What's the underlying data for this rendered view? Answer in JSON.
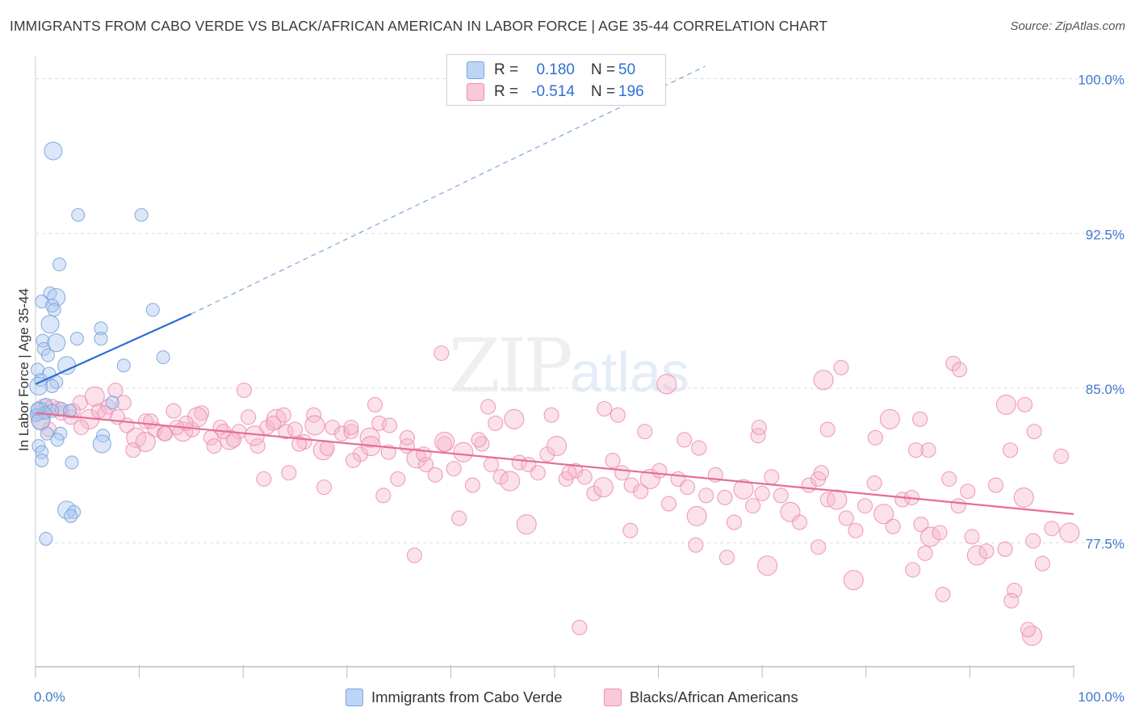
{
  "header": {
    "title": "IMMIGRANTS FROM CABO VERDE VS BLACK/AFRICAN AMERICAN IN LABOR FORCE | AGE 35-44 CORRELATION CHART",
    "source": "Source: ZipAtlas.com"
  },
  "watermark": {
    "zip": "ZIP",
    "atlas": "atlas"
  },
  "legend_top": {
    "rows": [
      {
        "r_label": "R =",
        "r_value": "0.180",
        "n_label": "N =",
        "n_value": "50"
      },
      {
        "r_label": "R =",
        "r_value": "-0.514",
        "n_label": "N =",
        "n_value": "196"
      }
    ]
  },
  "legend_bottom": {
    "items": [
      {
        "label": "Immigrants from Cabo Verde"
      },
      {
        "label": "Blacks/African Americans"
      }
    ]
  },
  "colors": {
    "blue_fill": "#a9c6ef",
    "blue_stroke": "#7aa3dc",
    "blue_line": "#2f6fd6",
    "pink_fill": "#f6b8cc",
    "pink_stroke": "#ec8fae",
    "pink_line": "#e56d97",
    "tick_text": "#3f78d0",
    "grid": "#dddddd"
  },
  "chart_data": {
    "type": "scatter",
    "title": "IMMIGRANTS FROM CABO VERDE VS BLACK/AFRICAN AMERICAN IN LABOR FORCE | AGE 35-44 CORRELATION CHART",
    "xlabel": "",
    "ylabel": "In Labor Force | Age 35-44",
    "xlim": [
      0,
      100
    ],
    "ylim": [
      70.0,
      101.0
    ],
    "x_tick_labels": [
      "0.0%",
      "100.0%"
    ],
    "y_ticks": [
      77.5,
      85.0,
      92.5,
      100.0
    ],
    "y_tick_labels": [
      "77.5%",
      "85.0%",
      "92.5%",
      "100.0%"
    ],
    "grid": true,
    "legend_position": "top-center",
    "series": [
      {
        "name": "Immigrants from Cabo Verde",
        "color": "#a9c6ef",
        "r": 0.18,
        "n": 50,
        "trend": {
          "x": [
            0.0,
            15.0
          ],
          "y": [
            85.2,
            88.6
          ],
          "extended_to": [
            64.5,
            100.6
          ]
        },
        "points": [
          [
            1.7,
            96.5
          ],
          [
            4.1,
            93.4
          ],
          [
            10.2,
            93.4
          ],
          [
            2.3,
            91.0
          ],
          [
            1.4,
            89.6
          ],
          [
            2.0,
            89.4
          ],
          [
            0.6,
            89.2
          ],
          [
            1.6,
            89.0
          ],
          [
            1.8,
            88.8
          ],
          [
            11.3,
            88.8
          ],
          [
            1.4,
            88.1
          ],
          [
            6.3,
            87.9
          ],
          [
            0.7,
            87.3
          ],
          [
            4.0,
            87.4
          ],
          [
            6.3,
            87.4
          ],
          [
            2.0,
            87.2
          ],
          [
            0.8,
            86.9
          ],
          [
            1.2,
            86.6
          ],
          [
            12.3,
            86.5
          ],
          [
            8.5,
            86.1
          ],
          [
            3.0,
            86.1
          ],
          [
            0.2,
            85.9
          ],
          [
            1.3,
            85.7
          ],
          [
            0.5,
            85.4
          ],
          [
            2.0,
            85.3
          ],
          [
            0.3,
            85.1
          ],
          [
            1.6,
            85.1
          ],
          [
            7.4,
            84.3
          ],
          [
            1.0,
            84.2
          ],
          [
            2.5,
            84.0
          ],
          [
            0.4,
            83.9
          ],
          [
            1.6,
            83.9
          ],
          [
            3.3,
            83.9
          ],
          [
            0.9,
            83.8
          ],
          [
            0.1,
            83.7
          ],
          [
            0.5,
            83.4
          ],
          [
            6.5,
            82.7
          ],
          [
            2.4,
            82.8
          ],
          [
            1.1,
            82.8
          ],
          [
            2.1,
            82.5
          ],
          [
            6.4,
            82.3
          ],
          [
            0.3,
            82.2
          ],
          [
            0.6,
            81.9
          ],
          [
            3.5,
            81.4
          ],
          [
            0.6,
            81.5
          ],
          [
            3.0,
            79.1
          ],
          [
            3.7,
            79.0
          ],
          [
            3.4,
            78.8
          ],
          [
            1.0,
            77.7
          ],
          [
            0.2,
            84.0
          ]
        ]
      },
      {
        "name": "Blacks/African Americans",
        "color": "#f6b8cc",
        "r": -0.514,
        "n": 196,
        "trend": {
          "x": [
            0.0,
            100.0
          ],
          "y": [
            83.8,
            78.9
          ]
        },
        "points": [
          [
            0.8,
            84.0
          ],
          [
            1.6,
            84.1
          ],
          [
            2.5,
            83.8
          ],
          [
            3.4,
            83.6
          ],
          [
            4.3,
            84.3
          ],
          [
            5.2,
            83.5
          ],
          [
            6.1,
            83.9
          ],
          [
            7.0,
            84.1
          ],
          [
            7.9,
            83.6
          ],
          [
            8.8,
            83.2
          ],
          [
            9.7,
            82.6
          ],
          [
            10.6,
            83.4
          ],
          [
            11.5,
            83.0
          ],
          [
            12.4,
            82.8
          ],
          [
            13.3,
            83.9
          ],
          [
            14.2,
            82.9
          ],
          [
            15.1,
            83.0
          ],
          [
            16.0,
            83.8
          ],
          [
            16.9,
            82.6
          ],
          [
            17.8,
            83.1
          ],
          [
            18.7,
            82.5
          ],
          [
            19.6,
            82.9
          ],
          [
            20.5,
            83.6
          ],
          [
            21.4,
            82.2
          ],
          [
            22.3,
            83.1
          ],
          [
            23.2,
            83.5
          ],
          [
            24.1,
            82.9
          ],
          [
            25.0,
            83.0
          ],
          [
            25.9,
            82.4
          ],
          [
            26.8,
            83.7
          ],
          [
            27.7,
            82.0
          ],
          [
            28.6,
            83.1
          ],
          [
            29.5,
            82.8
          ],
          [
            30.4,
            82.9
          ],
          [
            31.3,
            81.8
          ],
          [
            32.2,
            82.6
          ],
          [
            33.1,
            83.3
          ],
          [
            34.0,
            81.9
          ],
          [
            34.9,
            80.6
          ],
          [
            35.8,
            82.2
          ],
          [
            36.7,
            81.6
          ],
          [
            37.6,
            81.3
          ],
          [
            38.5,
            80.8
          ],
          [
            39.4,
            82.3
          ],
          [
            40.3,
            81.1
          ],
          [
            41.2,
            81.9
          ],
          [
            42.1,
            80.3
          ],
          [
            43.0,
            82.3
          ],
          [
            43.9,
            81.3
          ],
          [
            44.8,
            80.7
          ],
          [
            45.7,
            80.5
          ],
          [
            46.6,
            81.4
          ],
          [
            47.5,
            81.3
          ],
          [
            48.4,
            80.9
          ],
          [
            49.3,
            81.8
          ],
          [
            50.2,
            82.2
          ],
          [
            51.1,
            80.6
          ],
          [
            52.0,
            81.0
          ],
          [
            52.9,
            80.7
          ],
          [
            53.8,
            79.9
          ],
          [
            54.7,
            80.2
          ],
          [
            55.6,
            81.5
          ],
          [
            56.5,
            80.9
          ],
          [
            57.4,
            80.3
          ],
          [
            58.3,
            80.0
          ],
          [
            59.2,
            80.6
          ],
          [
            60.1,
            81.0
          ],
          [
            61.0,
            79.4
          ],
          [
            61.9,
            80.6
          ],
          [
            62.8,
            80.2
          ],
          [
            63.7,
            78.8
          ],
          [
            64.6,
            79.8
          ],
          [
            65.5,
            80.8
          ],
          [
            66.4,
            79.7
          ],
          [
            67.3,
            78.5
          ],
          [
            68.2,
            80.1
          ],
          [
            69.1,
            79.3
          ],
          [
            70.0,
            79.9
          ],
          [
            70.9,
            80.7
          ],
          [
            71.8,
            79.8
          ],
          [
            72.7,
            79.0
          ],
          [
            73.6,
            78.5
          ],
          [
            74.5,
            80.3
          ],
          [
            75.4,
            80.6
          ],
          [
            76.3,
            79.6
          ],
          [
            77.2,
            79.6
          ],
          [
            78.1,
            78.7
          ],
          [
            79.0,
            78.1
          ],
          [
            79.9,
            79.3
          ],
          [
            80.8,
            80.4
          ],
          [
            81.7,
            78.9
          ],
          [
            82.6,
            78.3
          ],
          [
            83.5,
            79.6
          ],
          [
            84.4,
            79.7
          ],
          [
            85.3,
            78.4
          ],
          [
            86.2,
            77.8
          ],
          [
            87.1,
            78.0
          ],
          [
            88.0,
            80.6
          ],
          [
            88.9,
            79.3
          ],
          [
            89.8,
            80.0
          ],
          [
            90.7,
            76.9
          ],
          [
            91.6,
            77.1
          ],
          [
            92.5,
            80.3
          ],
          [
            93.4,
            77.2
          ],
          [
            94.3,
            75.2
          ],
          [
            95.2,
            79.7
          ],
          [
            96.1,
            77.6
          ],
          [
            97.0,
            76.5
          ],
          [
            97.9,
            78.2
          ],
          [
            98.8,
            81.7
          ],
          [
            99.6,
            78.0
          ],
          [
            85.2,
            83.5
          ],
          [
            86.0,
            82.0
          ],
          [
            88.4,
            86.2
          ],
          [
            89.0,
            85.9
          ],
          [
            93.5,
            84.2
          ],
          [
            95.3,
            84.2
          ],
          [
            96.2,
            82.9
          ],
          [
            93.9,
            82.0
          ],
          [
            84.8,
            82.0
          ],
          [
            82.3,
            83.5
          ],
          [
            80.9,
            82.6
          ],
          [
            77.6,
            86.0
          ],
          [
            75.7,
            80.9
          ],
          [
            69.6,
            82.7
          ],
          [
            75.9,
            85.4
          ],
          [
            76.3,
            83.0
          ],
          [
            69.7,
            83.1
          ],
          [
            63.9,
            82.1
          ],
          [
            62.5,
            82.5
          ],
          [
            60.8,
            85.2
          ],
          [
            58.7,
            82.9
          ],
          [
            56.1,
            83.7
          ],
          [
            51.4,
            80.9
          ],
          [
            54.8,
            84.0
          ],
          [
            46.1,
            83.5
          ],
          [
            49.7,
            83.7
          ],
          [
            43.6,
            84.1
          ],
          [
            44.3,
            83.3
          ],
          [
            42.7,
            82.5
          ],
          [
            39.4,
            82.4
          ],
          [
            39.1,
            86.7
          ],
          [
            37.4,
            81.8
          ],
          [
            35.8,
            82.6
          ],
          [
            34.1,
            83.2
          ],
          [
            32.3,
            82.2
          ],
          [
            32.7,
            84.2
          ],
          [
            30.4,
            83.1
          ],
          [
            30.6,
            81.5
          ],
          [
            28.1,
            82.1
          ],
          [
            26.9,
            83.2
          ],
          [
            25.4,
            82.3
          ],
          [
            24.4,
            80.9
          ],
          [
            23.9,
            83.7
          ],
          [
            22.9,
            83.3
          ],
          [
            21.1,
            82.7
          ],
          [
            20.1,
            84.9
          ],
          [
            19.1,
            82.5
          ],
          [
            18.1,
            82.9
          ],
          [
            17.2,
            82.2
          ],
          [
            15.6,
            83.6
          ],
          [
            14.5,
            83.3
          ],
          [
            13.6,
            83.1
          ],
          [
            12.5,
            82.8
          ],
          [
            11.1,
            83.4
          ],
          [
            10.6,
            82.4
          ],
          [
            9.4,
            82.0
          ],
          [
            8.5,
            84.3
          ],
          [
            7.7,
            84.9
          ],
          [
            6.7,
            83.8
          ],
          [
            5.7,
            84.6
          ],
          [
            4.4,
            83.1
          ],
          [
            3.6,
            83.9
          ],
          [
            2.2,
            84.0
          ],
          [
            1.3,
            83.0
          ],
          [
            0.5,
            83.5
          ],
          [
            22.0,
            80.6
          ],
          [
            27.8,
            80.2
          ],
          [
            33.5,
            79.8
          ],
          [
            40.8,
            78.7
          ],
          [
            47.3,
            78.4
          ],
          [
            57.3,
            78.1
          ],
          [
            63.6,
            77.4
          ],
          [
            66.6,
            76.8
          ],
          [
            75.4,
            77.3
          ],
          [
            78.8,
            75.7
          ],
          [
            84.5,
            76.2
          ],
          [
            85.7,
            77.0
          ],
          [
            90.2,
            77.8
          ],
          [
            87.4,
            75.0
          ],
          [
            96.0,
            73.0
          ],
          [
            94.0,
            74.7
          ],
          [
            95.6,
            73.3
          ],
          [
            52.4,
            73.4
          ],
          [
            36.5,
            76.9
          ],
          [
            70.5,
            76.4
          ]
        ]
      }
    ]
  }
}
